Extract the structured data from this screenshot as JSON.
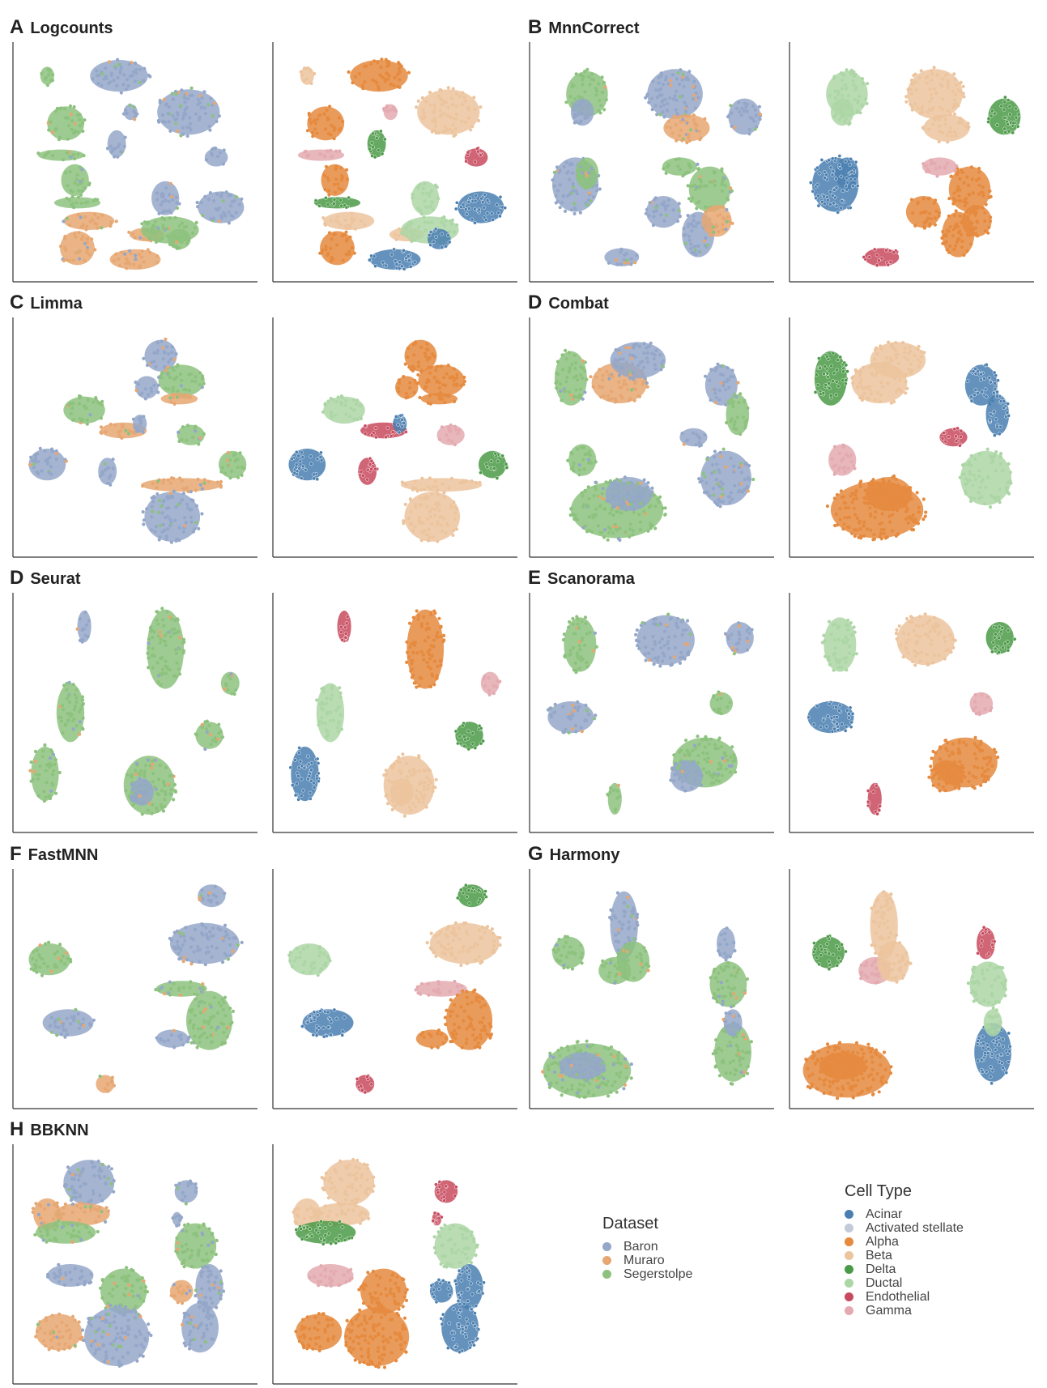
{
  "colors": {
    "dataset": {
      "Baron": "#94a7c9",
      "Muraro": "#e6a772",
      "Segerstolpe": "#8dc27e"
    },
    "celltype": {
      "Acinar": "#4a7fb0",
      "Activated stellate": "#c4cbd8",
      "Alpha": "#e58a3e",
      "Beta": "#ecc49e",
      "Delta": "#4b9a47",
      "Ductal": "#add6a6",
      "Endothelial": "#c84a5e",
      "Gamma": "#e3aab0"
    }
  },
  "legend_dataset": {
    "title": "Dataset",
    "items": [
      "Baron",
      "Muraro",
      "Segerstolpe"
    ]
  },
  "legend_celltype": {
    "title": "Cell Type",
    "items": [
      "Acinar",
      "Activated stellate",
      "Alpha",
      "Beta",
      "Delta",
      "Ductal",
      "Endothelial",
      "Gamma"
    ]
  },
  "chart_data": [
    {
      "letter": "A",
      "label": "Logcounts",
      "type": "scatter",
      "clusters": [
        {
          "x": 0.12,
          "y": 0.12,
          "w": 0.06,
          "h": 0.08,
          "ds": "Segerstolpe",
          "ct": "Beta"
        },
        {
          "x": 0.43,
          "y": 0.12,
          "w": 0.25,
          "h": 0.14,
          "ds": "Baron",
          "ct": "Alpha"
        },
        {
          "x": 0.73,
          "y": 0.28,
          "w": 0.27,
          "h": 0.2,
          "ds": "Baron",
          "ct": "Beta"
        },
        {
          "x": 0.2,
          "y": 0.33,
          "w": 0.16,
          "h": 0.15,
          "ds": "Segerstolpe",
          "ct": "Alpha"
        },
        {
          "x": 0.18,
          "y": 0.47,
          "w": 0.2,
          "h": 0.05,
          "ds": "Segerstolpe",
          "ct": "Gamma"
        },
        {
          "x": 0.24,
          "y": 0.58,
          "w": 0.12,
          "h": 0.14,
          "ds": "Segerstolpe",
          "ct": "Alpha"
        },
        {
          "x": 0.48,
          "y": 0.28,
          "w": 0.06,
          "h": 0.07,
          "ds": "Baron",
          "ct": "Gamma"
        },
        {
          "x": 0.42,
          "y": 0.42,
          "w": 0.08,
          "h": 0.12,
          "ds": "Baron",
          "ct": "Delta"
        },
        {
          "x": 0.85,
          "y": 0.48,
          "w": 0.1,
          "h": 0.08,
          "ds": "Baron",
          "ct": "Endothelial"
        },
        {
          "x": 0.25,
          "y": 0.68,
          "w": 0.2,
          "h": 0.05,
          "ds": "Segerstolpe",
          "ct": "Delta"
        },
        {
          "x": 0.3,
          "y": 0.76,
          "w": 0.22,
          "h": 0.08,
          "ds": "Muraro",
          "ct": "Beta"
        },
        {
          "x": 0.25,
          "y": 0.88,
          "w": 0.15,
          "h": 0.15,
          "ds": "Muraro",
          "ct": "Alpha"
        },
        {
          "x": 0.55,
          "y": 0.82,
          "w": 0.15,
          "h": 0.06,
          "ds": "Muraro",
          "ct": "Beta"
        },
        {
          "x": 0.63,
          "y": 0.66,
          "w": 0.12,
          "h": 0.15,
          "ds": "Baron",
          "ct": "Ductal"
        },
        {
          "x": 0.65,
          "y": 0.8,
          "w": 0.25,
          "h": 0.12,
          "ds": "Segerstolpe",
          "ct": "Ductal"
        },
        {
          "x": 0.87,
          "y": 0.7,
          "w": 0.2,
          "h": 0.14,
          "ds": "Baron",
          "ct": "Acinar"
        },
        {
          "x": 0.5,
          "y": 0.93,
          "w": 0.22,
          "h": 0.09,
          "ds": "Muraro",
          "ct": "Acinar"
        },
        {
          "x": 0.69,
          "y": 0.84,
          "w": 0.1,
          "h": 0.09,
          "ds": "Segerstolpe",
          "ct": "Acinar"
        }
      ]
    },
    {
      "letter": "B",
      "label": "MnnCorrect",
      "type": "scatter",
      "clusters": [
        {
          "x": 0.22,
          "y": 0.2,
          "w": 0.18,
          "h": 0.2,
          "ds": "Segerstolpe",
          "ct": "Ductal"
        },
        {
          "x": 0.2,
          "y": 0.28,
          "w": 0.1,
          "h": 0.12,
          "ds": "Baron",
          "ct": "Ductal"
        },
        {
          "x": 0.6,
          "y": 0.2,
          "w": 0.24,
          "h": 0.22,
          "ds": "Baron",
          "ct": "Beta"
        },
        {
          "x": 0.65,
          "y": 0.35,
          "w": 0.2,
          "h": 0.12,
          "ds": "Muraro",
          "ct": "Beta"
        },
        {
          "x": 0.9,
          "y": 0.3,
          "w": 0.14,
          "h": 0.16,
          "ds": "Baron",
          "ct": "Delta"
        },
        {
          "x": 0.17,
          "y": 0.6,
          "w": 0.2,
          "h": 0.24,
          "ds": "Baron",
          "ct": "Acinar"
        },
        {
          "x": 0.22,
          "y": 0.55,
          "w": 0.1,
          "h": 0.14,
          "ds": "Segerstolpe",
          "ct": "Acinar"
        },
        {
          "x": 0.62,
          "y": 0.52,
          "w": 0.15,
          "h": 0.08,
          "ds": "Segerstolpe",
          "ct": "Gamma"
        },
        {
          "x": 0.75,
          "y": 0.62,
          "w": 0.18,
          "h": 0.2,
          "ds": "Segerstolpe",
          "ct": "Alpha"
        },
        {
          "x": 0.55,
          "y": 0.72,
          "w": 0.15,
          "h": 0.14,
          "ds": "Baron",
          "ct": "Alpha"
        },
        {
          "x": 0.7,
          "y": 0.82,
          "w": 0.14,
          "h": 0.2,
          "ds": "Baron",
          "ct": "Alpha"
        },
        {
          "x": 0.78,
          "y": 0.76,
          "w": 0.13,
          "h": 0.14,
          "ds": "Muraro",
          "ct": "Alpha"
        },
        {
          "x": 0.37,
          "y": 0.92,
          "w": 0.15,
          "h": 0.08,
          "ds": "Baron",
          "ct": "Endothelial"
        }
      ]
    },
    {
      "letter": "C",
      "label": "Limma",
      "type": "scatter",
      "clusters": [
        {
          "x": 0.61,
          "y": 0.14,
          "w": 0.14,
          "h": 0.14,
          "ds": "Baron",
          "ct": "Alpha"
        },
        {
          "x": 0.7,
          "y": 0.25,
          "w": 0.2,
          "h": 0.14,
          "ds": "Segerstolpe",
          "ct": "Alpha"
        },
        {
          "x": 0.55,
          "y": 0.28,
          "w": 0.1,
          "h": 0.1,
          "ds": "Baron",
          "ct": "Alpha"
        },
        {
          "x": 0.69,
          "y": 0.33,
          "w": 0.16,
          "h": 0.05,
          "ds": "Muraro",
          "ct": "Alpha"
        },
        {
          "x": 0.28,
          "y": 0.38,
          "w": 0.18,
          "h": 0.12,
          "ds": "Segerstolpe",
          "ct": "Ductal"
        },
        {
          "x": 0.45,
          "y": 0.47,
          "w": 0.2,
          "h": 0.07,
          "ds": "Muraro",
          "ct": "Endothelial"
        },
        {
          "x": 0.52,
          "y": 0.44,
          "w": 0.06,
          "h": 0.08,
          "ds": "Baron",
          "ct": "Acinar"
        },
        {
          "x": 0.74,
          "y": 0.49,
          "w": 0.12,
          "h": 0.09,
          "ds": "Segerstolpe",
          "ct": "Gamma"
        },
        {
          "x": 0.12,
          "y": 0.62,
          "w": 0.16,
          "h": 0.14,
          "ds": "Baron",
          "ct": "Acinar"
        },
        {
          "x": 0.38,
          "y": 0.65,
          "w": 0.08,
          "h": 0.12,
          "ds": "Baron",
          "ct": "Endothelial"
        },
        {
          "x": 0.92,
          "y": 0.62,
          "w": 0.12,
          "h": 0.12,
          "ds": "Segerstolpe",
          "ct": "Delta"
        },
        {
          "x": 0.7,
          "y": 0.71,
          "w": 0.35,
          "h": 0.06,
          "ds": "Muraro",
          "ct": "Beta"
        },
        {
          "x": 0.66,
          "y": 0.85,
          "w": 0.24,
          "h": 0.22,
          "ds": "Baron",
          "ct": "Beta"
        }
      ]
    },
    {
      "letter": "D",
      "label": "Combat",
      "type": "scatter",
      "clusters": [
        {
          "x": 0.15,
          "y": 0.24,
          "w": 0.14,
          "h": 0.24,
          "ds": "Segerstolpe",
          "ct": "Delta"
        },
        {
          "x": 0.36,
          "y": 0.26,
          "w": 0.24,
          "h": 0.18,
          "ds": "Muraro",
          "ct": "Beta"
        },
        {
          "x": 0.44,
          "y": 0.16,
          "w": 0.24,
          "h": 0.16,
          "ds": "Baron",
          "ct": "Beta"
        },
        {
          "x": 0.8,
          "y": 0.27,
          "w": 0.14,
          "h": 0.18,
          "ds": "Baron",
          "ct": "Acinar"
        },
        {
          "x": 0.87,
          "y": 0.4,
          "w": 0.1,
          "h": 0.18,
          "ds": "Segerstolpe",
          "ct": "Acinar"
        },
        {
          "x": 0.68,
          "y": 0.5,
          "w": 0.12,
          "h": 0.08,
          "ds": "Baron",
          "ct": "Endothelial"
        },
        {
          "x": 0.2,
          "y": 0.6,
          "w": 0.12,
          "h": 0.14,
          "ds": "Segerstolpe",
          "ct": "Gamma"
        },
        {
          "x": 0.82,
          "y": 0.68,
          "w": 0.22,
          "h": 0.24,
          "ds": "Baron",
          "ct": "Ductal"
        },
        {
          "x": 0.35,
          "y": 0.82,
          "w": 0.4,
          "h": 0.25,
          "ds": "Segerstolpe",
          "ct": "Alpha"
        },
        {
          "x": 0.4,
          "y": 0.75,
          "w": 0.2,
          "h": 0.15,
          "ds": "Baron",
          "ct": "Alpha"
        }
      ]
    },
    {
      "letter": "D",
      "label": "Seurat",
      "type": "scatter",
      "clusters": [
        {
          "x": 0.28,
          "y": 0.12,
          "w": 0.06,
          "h": 0.14,
          "ds": "Baron",
          "ct": "Endothelial"
        },
        {
          "x": 0.63,
          "y": 0.22,
          "w": 0.16,
          "h": 0.35,
          "ds": "Segerstolpe",
          "ct": "Alpha"
        },
        {
          "x": 0.91,
          "y": 0.37,
          "w": 0.08,
          "h": 0.1,
          "ds": "Segerstolpe",
          "ct": "Gamma"
        },
        {
          "x": 0.22,
          "y": 0.5,
          "w": 0.12,
          "h": 0.26,
          "ds": "Segerstolpe",
          "ct": "Ductal"
        },
        {
          "x": 0.82,
          "y": 0.6,
          "w": 0.12,
          "h": 0.12,
          "ds": "Segerstolpe",
          "ct": "Delta"
        },
        {
          "x": 0.11,
          "y": 0.77,
          "w": 0.12,
          "h": 0.24,
          "ds": "Segerstolpe",
          "ct": "Acinar"
        },
        {
          "x": 0.56,
          "y": 0.82,
          "w": 0.22,
          "h": 0.26,
          "ds": "Segerstolpe",
          "ct": "Beta"
        },
        {
          "x": 0.53,
          "y": 0.85,
          "w": 0.1,
          "h": 0.12,
          "ds": "Baron",
          "ct": "Beta"
        }
      ]
    },
    {
      "letter": "E",
      "label": "Scanorama",
      "type": "scatter",
      "clusters": [
        {
          "x": 0.19,
          "y": 0.2,
          "w": 0.14,
          "h": 0.24,
          "ds": "Segerstolpe",
          "ct": "Ductal"
        },
        {
          "x": 0.56,
          "y": 0.18,
          "w": 0.25,
          "h": 0.22,
          "ds": "Baron",
          "ct": "Beta"
        },
        {
          "x": 0.88,
          "y": 0.17,
          "w": 0.12,
          "h": 0.14,
          "ds": "Baron",
          "ct": "Delta"
        },
        {
          "x": 0.15,
          "y": 0.52,
          "w": 0.2,
          "h": 0.14,
          "ds": "Baron",
          "ct": "Acinar"
        },
        {
          "x": 0.8,
          "y": 0.46,
          "w": 0.1,
          "h": 0.1,
          "ds": "Segerstolpe",
          "ct": "Gamma"
        },
        {
          "x": 0.73,
          "y": 0.72,
          "w": 0.28,
          "h": 0.22,
          "ds": "Segerstolpe",
          "ct": "Alpha"
        },
        {
          "x": 0.65,
          "y": 0.78,
          "w": 0.14,
          "h": 0.14,
          "ds": "Baron",
          "ct": "Alpha"
        },
        {
          "x": 0.34,
          "y": 0.88,
          "w": 0.06,
          "h": 0.14,
          "ds": "Segerstolpe",
          "ct": "Endothelial"
        }
      ]
    },
    {
      "letter": "F",
      "label": "FastMNN",
      "type": "scatter",
      "clusters": [
        {
          "x": 0.83,
          "y": 0.09,
          "w": 0.12,
          "h": 0.1,
          "ds": "Baron",
          "ct": "Delta"
        },
        {
          "x": 0.8,
          "y": 0.3,
          "w": 0.3,
          "h": 0.18,
          "ds": "Baron",
          "ct": "Beta"
        },
        {
          "x": 0.13,
          "y": 0.37,
          "w": 0.18,
          "h": 0.14,
          "ds": "Segerstolpe",
          "ct": "Ductal"
        },
        {
          "x": 0.7,
          "y": 0.5,
          "w": 0.22,
          "h": 0.07,
          "ds": "Segerstolpe",
          "ct": "Gamma"
        },
        {
          "x": 0.82,
          "y": 0.64,
          "w": 0.2,
          "h": 0.26,
          "ds": "Segerstolpe",
          "ct": "Alpha"
        },
        {
          "x": 0.66,
          "y": 0.72,
          "w": 0.14,
          "h": 0.08,
          "ds": "Baron",
          "ct": "Alpha"
        },
        {
          "x": 0.21,
          "y": 0.65,
          "w": 0.22,
          "h": 0.12,
          "ds": "Baron",
          "ct": "Acinar"
        },
        {
          "x": 0.37,
          "y": 0.92,
          "w": 0.08,
          "h": 0.08,
          "ds": "Muraro",
          "ct": "Endothelial"
        }
      ]
    },
    {
      "letter": "G",
      "label": "Harmony",
      "type": "scatter",
      "clusters": [
        {
          "x": 0.14,
          "y": 0.34,
          "w": 0.14,
          "h": 0.14,
          "ds": "Segerstolpe",
          "ct": "Delta"
        },
        {
          "x": 0.34,
          "y": 0.42,
          "w": 0.14,
          "h": 0.12,
          "ds": "Segerstolpe",
          "ct": "Gamma"
        },
        {
          "x": 0.38,
          "y": 0.22,
          "w": 0.12,
          "h": 0.3,
          "ds": "Baron",
          "ct": "Beta"
        },
        {
          "x": 0.42,
          "y": 0.38,
          "w": 0.14,
          "h": 0.18,
          "ds": "Segerstolpe",
          "ct": "Beta"
        },
        {
          "x": 0.82,
          "y": 0.3,
          "w": 0.08,
          "h": 0.14,
          "ds": "Baron",
          "ct": "Endothelial"
        },
        {
          "x": 0.83,
          "y": 0.48,
          "w": 0.16,
          "h": 0.2,
          "ds": "Segerstolpe",
          "ct": "Ductal"
        },
        {
          "x": 0.85,
          "y": 0.78,
          "w": 0.16,
          "h": 0.26,
          "ds": "Segerstolpe",
          "ct": "Acinar"
        },
        {
          "x": 0.85,
          "y": 0.65,
          "w": 0.08,
          "h": 0.12,
          "ds": "Baron",
          "ct": "Ductal"
        },
        {
          "x": 0.22,
          "y": 0.86,
          "w": 0.38,
          "h": 0.24,
          "ds": "Segerstolpe",
          "ct": "Alpha"
        },
        {
          "x": 0.2,
          "y": 0.84,
          "w": 0.2,
          "h": 0.12,
          "ds": "Baron",
          "ct": "Alpha"
        }
      ]
    },
    {
      "letter": "H",
      "label": "BBKNN",
      "type": "scatter",
      "clusters": [
        {
          "x": 0.3,
          "y": 0.14,
          "w": 0.22,
          "h": 0.2,
          "ds": "Baron",
          "ct": "Beta"
        },
        {
          "x": 0.27,
          "y": 0.28,
          "w": 0.24,
          "h": 0.1,
          "ds": "Muraro",
          "ct": "Beta"
        },
        {
          "x": 0.12,
          "y": 0.28,
          "w": 0.12,
          "h": 0.14,
          "ds": "Muraro",
          "ct": "Beta"
        },
        {
          "x": 0.2,
          "y": 0.36,
          "w": 0.26,
          "h": 0.1,
          "ds": "Segerstolpe",
          "ct": "Delta"
        },
        {
          "x": 0.22,
          "y": 0.55,
          "w": 0.2,
          "h": 0.1,
          "ds": "Baron",
          "ct": "Gamma"
        },
        {
          "x": 0.45,
          "y": 0.62,
          "w": 0.2,
          "h": 0.2,
          "ds": "Segerstolpe",
          "ct": "Alpha"
        },
        {
          "x": 0.17,
          "y": 0.8,
          "w": 0.2,
          "h": 0.16,
          "ds": "Muraro",
          "ct": "Alpha"
        },
        {
          "x": 0.42,
          "y": 0.82,
          "w": 0.28,
          "h": 0.26,
          "ds": "Baron",
          "ct": "Alpha"
        },
        {
          "x": 0.72,
          "y": 0.18,
          "w": 0.1,
          "h": 0.1,
          "ds": "Baron",
          "ct": "Endothelial"
        },
        {
          "x": 0.76,
          "y": 0.42,
          "w": 0.18,
          "h": 0.2,
          "ds": "Segerstolpe",
          "ct": "Ductal"
        },
        {
          "x": 0.82,
          "y": 0.6,
          "w": 0.12,
          "h": 0.2,
          "ds": "Baron",
          "ct": "Acinar"
        },
        {
          "x": 0.78,
          "y": 0.78,
          "w": 0.16,
          "h": 0.22,
          "ds": "Baron",
          "ct": "Acinar"
        },
        {
          "x": 0.7,
          "y": 0.62,
          "w": 0.1,
          "h": 0.1,
          "ds": "Muraro",
          "ct": "Acinar"
        },
        {
          "x": 0.68,
          "y": 0.3,
          "w": 0.04,
          "h": 0.06,
          "ds": "Baron",
          "ct": "Endothelial"
        }
      ]
    }
  ]
}
